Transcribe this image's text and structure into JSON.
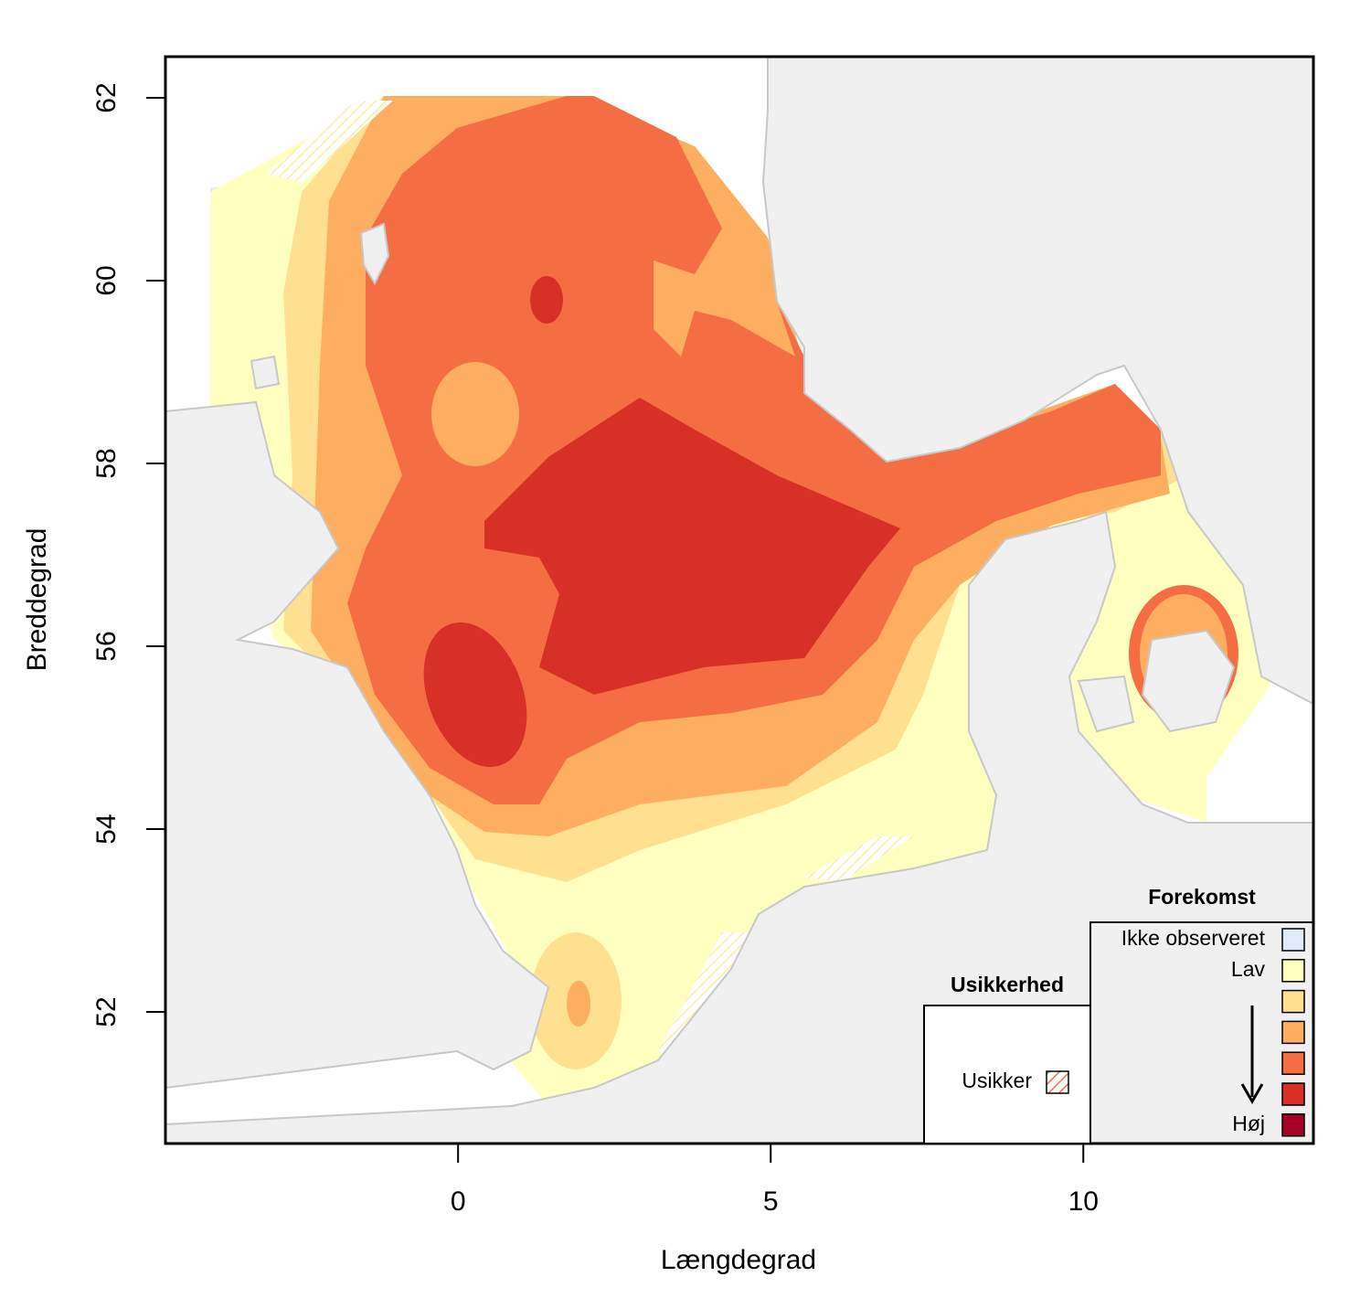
{
  "map": {
    "xlabel": "Længdegrad",
    "ylabel": "Breddegrad",
    "xlim": [
      -4.68,
      13.68
    ],
    "ylim": [
      50.56,
      62.45
    ],
    "xticks": [
      0,
      5,
      10
    ],
    "yticks": [
      52,
      54,
      56,
      58,
      60,
      62
    ],
    "legends": [
      {
        "title": "Usikkerhed",
        "entries": [
          {
            "label": "Usikker",
            "pattern": "hatch",
            "color": "#f46d43"
          }
        ]
      },
      {
        "title": "Forekomst",
        "entries": [
          {
            "label": "Ikke observeret",
            "color": "#deebf7"
          },
          {
            "label": "Lav",
            "color": "#ffffbf"
          },
          {
            "label": null,
            "color": "#fee090"
          },
          {
            "label": null,
            "color": "#fdae61"
          },
          {
            "label": null,
            "color": "#f46d43"
          },
          {
            "label": null,
            "color": "#d73027"
          },
          {
            "label": "Høj",
            "color": "#a50026"
          }
        ]
      }
    ]
  }
}
